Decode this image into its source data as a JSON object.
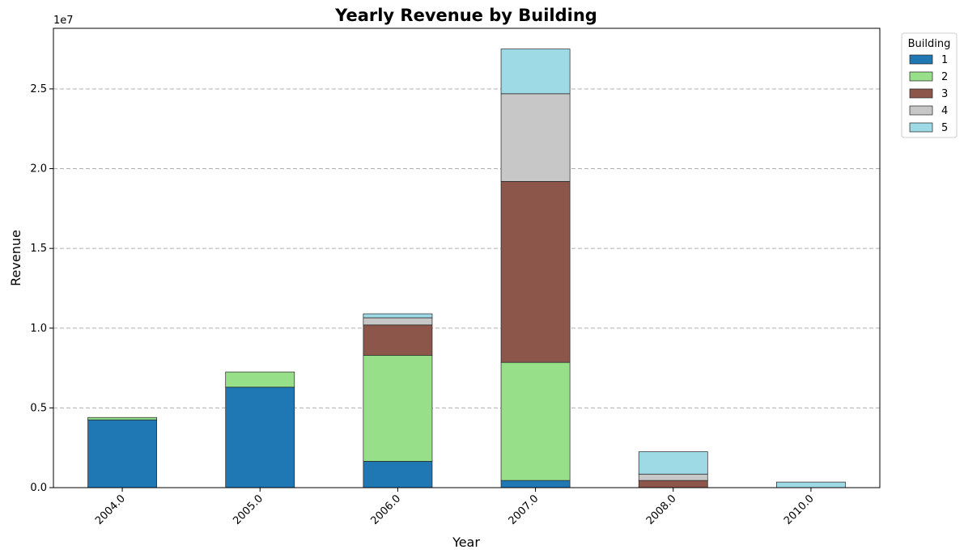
{
  "chart_data": {
    "type": "bar",
    "stacked": true,
    "title": "Yearly Revenue by Building",
    "xlabel": "Year",
    "ylabel": "Revenue",
    "y_scale_label": "1e7",
    "categories": [
      "2004.0",
      "2005.0",
      "2006.0",
      "2007.0",
      "2008.0",
      "2010.0"
    ],
    "ylim": [
      0,
      28800000
    ],
    "yticks": [
      0,
      5000000,
      10000000,
      15000000,
      20000000,
      25000000
    ],
    "ytick_labels": [
      "0.0",
      "0.5",
      "1.0",
      "1.5",
      "2.0",
      "2.5"
    ],
    "grid": "horizontal dashed",
    "legend_title": "Building",
    "legend_position": "outside top-right",
    "series": [
      {
        "name": "1",
        "color": "#1f77b4",
        "values": [
          4250000,
          6300000,
          1650000,
          450000,
          0,
          0
        ]
      },
      {
        "name": "2",
        "color": "#98df8a",
        "values": [
          150000,
          950000,
          6650000,
          7400000,
          0,
          0
        ]
      },
      {
        "name": "3",
        "color": "#8c564b",
        "values": [
          0,
          0,
          1900000,
          11350000,
          450000,
          0
        ]
      },
      {
        "name": "4",
        "color": "#c7c7c7",
        "values": [
          0,
          0,
          450000,
          5500000,
          400000,
          0
        ]
      },
      {
        "name": "5",
        "color": "#9edae5",
        "values": [
          0,
          0,
          250000,
          2800000,
          1400000,
          350000
        ]
      }
    ]
  }
}
